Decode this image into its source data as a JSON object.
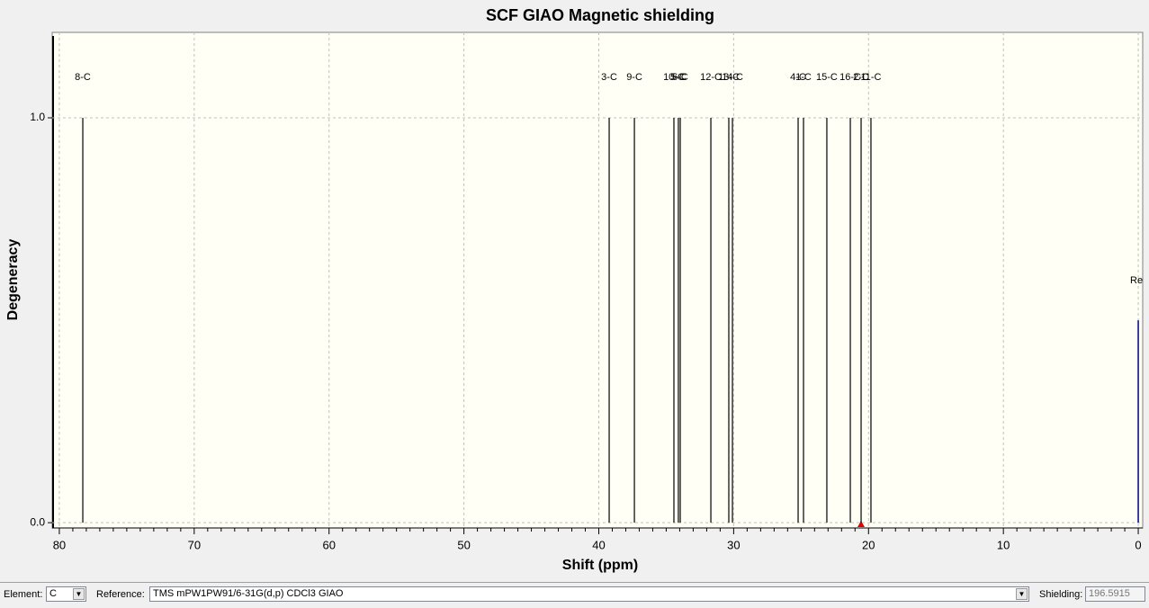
{
  "chart_data": {
    "type": "stick",
    "title": "SCF GIAO Magnetic shielding",
    "xlabel": "Shift (ppm)",
    "ylabel": "Degeneracy",
    "labels": [
      "8-C",
      "3-C",
      "9-C",
      "10-C",
      "5-C",
      "6-C",
      "12-C",
      "13-C",
      "14-C",
      "4-C",
      "1-C",
      "15-C",
      "16-C",
      "2-C",
      "11-C"
    ],
    "x": [
      78.26,
      39.23,
      37.36,
      34.43,
      34.1,
      33.96,
      31.69,
      30.36,
      30.09,
      25.22,
      24.82,
      23.09,
      21.35,
      20.55,
      19.82
    ],
    "values": [
      1,
      1,
      1,
      1,
      1,
      1,
      1,
      1,
      1,
      1,
      1,
      1,
      1,
      1,
      1
    ],
    "color": "#000000",
    "reference": {
      "label": "Re",
      "x": 0,
      "value": 0.5,
      "color": "#00008b"
    },
    "xlim": [
      80.53,
      -0.33
    ],
    "ylim": [
      -0.013,
      1.211
    ],
    "xticks": [
      80,
      70,
      60,
      50,
      40,
      30,
      20,
      10,
      0
    ],
    "xminor": [
      79,
      78,
      77,
      76,
      75,
      74,
      73,
      72,
      71,
      69,
      68,
      67,
      66,
      65,
      64,
      63,
      62,
      61,
      59,
      58,
      57,
      56,
      55,
      54,
      53,
      52,
      51,
      49,
      48,
      47,
      46,
      45,
      44,
      43,
      42,
      41,
      39,
      38,
      37,
      36,
      35,
      34,
      33,
      32,
      31,
      29,
      28,
      27,
      26,
      25,
      24,
      23,
      22,
      21,
      19,
      18,
      17,
      16,
      15,
      14,
      13,
      12,
      11,
      9,
      8,
      7,
      6,
      5,
      4,
      3,
      2,
      1
    ],
    "yticks": [
      {
        "value": 0,
        "label": "0.0"
      },
      {
        "value": 1,
        "label": "1.0"
      }
    ],
    "grid": true
  },
  "controls": {
    "element_label": "Element:",
    "element": "C",
    "reference_label": "Reference:",
    "reference": "TMS mPW1PW91/6-31G(d,p) CDCl3 GIAO",
    "shielding_label": "Shielding:",
    "shielding": "196.5915"
  }
}
